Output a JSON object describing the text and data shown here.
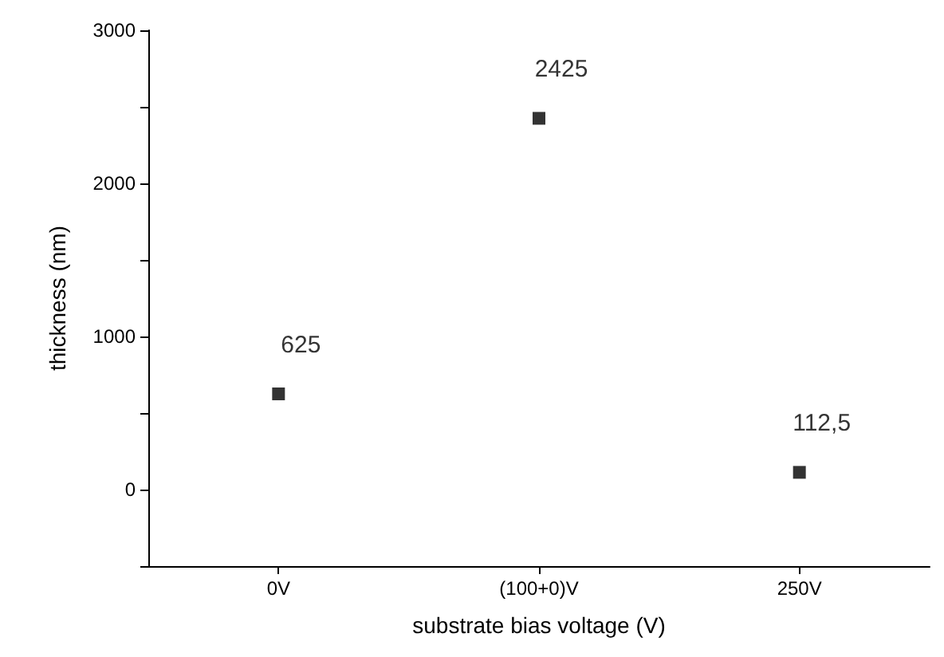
{
  "chart_data": {
    "type": "scatter",
    "xlabel": "substrate bias voltage (V)",
    "ylabel": "thickness (nm)",
    "categories": [
      "0V",
      "(100+0)V",
      "250V"
    ],
    "series": [
      {
        "color": "#000000",
        "values": [
          625,
          2425,
          112.5
        ],
        "value_labels": [
          "625",
          "2425",
          "112,5"
        ]
      }
    ],
    "ylim": [
      -500,
      3000
    ],
    "yticks": [
      {
        "value": -500,
        "label": null
      },
      0,
      {
        "value": 500,
        "label": null
      },
      1000,
      {
        "value": 1500,
        "label": null
      },
      2000,
      {
        "value": 2500,
        "label": null
      },
      3000
    ],
    "marker": "square"
  }
}
